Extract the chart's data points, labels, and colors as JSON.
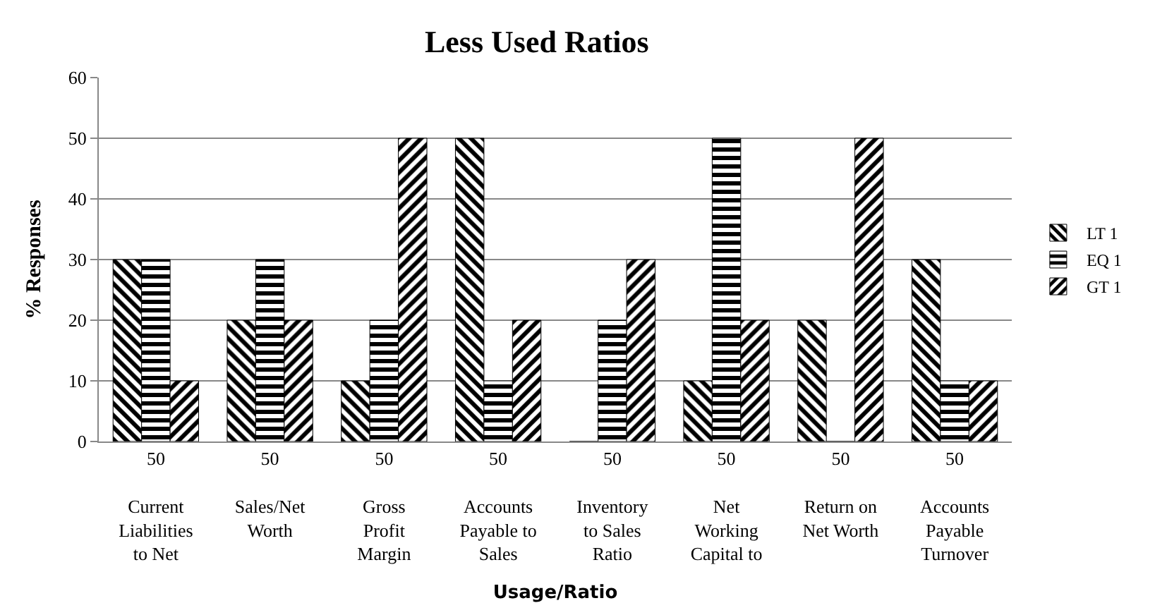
{
  "chart_data": {
    "type": "bar",
    "title": "Less Used Ratios",
    "xlabel": "Usage/Ratio",
    "ylabel": "% Responses",
    "categories": [
      "Current Liabilities to Net",
      "Sales/Net Worth",
      "Gross Profit Margin",
      "Accounts Payable to Sales",
      "Inventory to Sales Ratio",
      "Net Working Capital to",
      "Return on Net Worth",
      "Accounts Payable Turnover"
    ],
    "annotations": [
      "50",
      "50",
      "50",
      "50",
      "50",
      "50",
      "50",
      "50"
    ],
    "series": [
      {
        "name": "LT 1",
        "color": "#000000",
        "values": [
          30,
          20,
          10,
          50,
          0,
          10,
          20,
          30
        ]
      },
      {
        "name": "EQ 1",
        "color": "#000000",
        "values": [
          30,
          30,
          20,
          10,
          20,
          50,
          0,
          10
        ]
      },
      {
        "name": "GT 1",
        "color": "#000000",
        "values": [
          10,
          20,
          50,
          20,
          30,
          20,
          50,
          10
        ]
      }
    ],
    "ylim": [
      0,
      60
    ],
    "yticks": [
      0,
      10,
      20,
      30,
      40,
      50,
      60
    ],
    "grid": "y",
    "legend": "right"
  }
}
